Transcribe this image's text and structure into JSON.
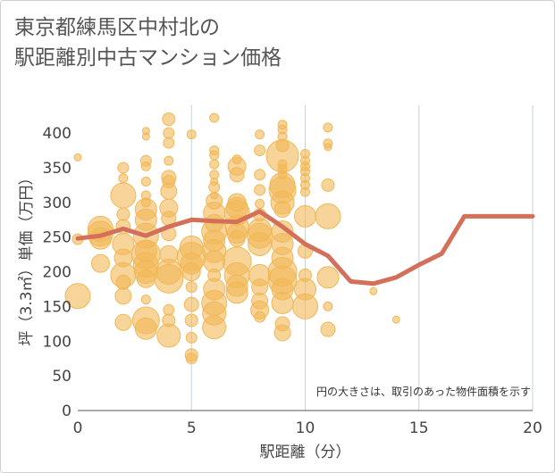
{
  "title_line1": "東京都練馬区中村北の",
  "title_line2": "駅距離別中古マンション価格",
  "chart_data": {
    "type": "scatter",
    "xlabel": "駅距離（分）",
    "ylabel": "坪（3.3㎡）単価（万円）",
    "annotation": "円の大きさは、取引のあった物件面積を示す",
    "xlim": [
      0,
      20
    ],
    "ylim": [
      0,
      440
    ],
    "x_ticks": [
      0,
      5,
      10,
      15,
      20
    ],
    "y_ticks": [
      0,
      50,
      100,
      150,
      200,
      250,
      300,
      350,
      400
    ],
    "grid": "vertical",
    "bubble_color": "#f2b857",
    "line_color": "#d4705a",
    "points": [
      {
        "x": 0,
        "y": 365,
        "r": 4
      },
      {
        "x": 0,
        "y": 165,
        "r": 14
      },
      {
        "x": 0,
        "y": 247,
        "r": 6
      },
      {
        "x": 1,
        "y": 262,
        "r": 14
      },
      {
        "x": 1,
        "y": 255,
        "r": 14
      },
      {
        "x": 1,
        "y": 248,
        "r": 12
      },
      {
        "x": 1,
        "y": 212,
        "r": 10
      },
      {
        "x": 2,
        "y": 350,
        "r": 6
      },
      {
        "x": 2,
        "y": 335,
        "r": 5
      },
      {
        "x": 2,
        "y": 310,
        "r": 14
      },
      {
        "x": 2,
        "y": 283,
        "r": 7
      },
      {
        "x": 2,
        "y": 265,
        "r": 8
      },
      {
        "x": 2,
        "y": 240,
        "r": 12
      },
      {
        "x": 2,
        "y": 220,
        "r": 10
      },
      {
        "x": 2,
        "y": 195,
        "r": 14
      },
      {
        "x": 2,
        "y": 185,
        "r": 8
      },
      {
        "x": 2,
        "y": 165,
        "r": 9
      },
      {
        "x": 2,
        "y": 127,
        "r": 9
      },
      {
        "x": 3,
        "y": 403,
        "r": 4
      },
      {
        "x": 3,
        "y": 395,
        "r": 4
      },
      {
        "x": 3,
        "y": 360,
        "r": 6
      },
      {
        "x": 3,
        "y": 352,
        "r": 5
      },
      {
        "x": 3,
        "y": 330,
        "r": 5
      },
      {
        "x": 3,
        "y": 310,
        "r": 5
      },
      {
        "x": 3,
        "y": 300,
        "r": 5
      },
      {
        "x": 3,
        "y": 290,
        "r": 12
      },
      {
        "x": 3,
        "y": 275,
        "r": 12
      },
      {
        "x": 3,
        "y": 252,
        "r": 14
      },
      {
        "x": 3,
        "y": 230,
        "r": 12
      },
      {
        "x": 3,
        "y": 225,
        "r": 16
      },
      {
        "x": 3,
        "y": 210,
        "r": 14
      },
      {
        "x": 3,
        "y": 200,
        "r": 13
      },
      {
        "x": 3,
        "y": 190,
        "r": 10
      },
      {
        "x": 3,
        "y": 160,
        "r": 5
      },
      {
        "x": 3,
        "y": 130,
        "r": 15
      },
      {
        "x": 3,
        "y": 118,
        "r": 12
      },
      {
        "x": 4,
        "y": 420,
        "r": 7
      },
      {
        "x": 4,
        "y": 400,
        "r": 6
      },
      {
        "x": 4,
        "y": 386,
        "r": 6
      },
      {
        "x": 4,
        "y": 360,
        "r": 5
      },
      {
        "x": 4,
        "y": 336,
        "r": 8
      },
      {
        "x": 4,
        "y": 330,
        "r": 7
      },
      {
        "x": 4,
        "y": 316,
        "r": 9
      },
      {
        "x": 4,
        "y": 292,
        "r": 10
      },
      {
        "x": 4,
        "y": 277,
        "r": 8
      },
      {
        "x": 4,
        "y": 255,
        "r": 8
      },
      {
        "x": 4,
        "y": 225,
        "r": 10
      },
      {
        "x": 4,
        "y": 200,
        "r": 14
      },
      {
        "x": 4,
        "y": 190,
        "r": 16
      },
      {
        "x": 4,
        "y": 145,
        "r": 6
      },
      {
        "x": 4,
        "y": 130,
        "r": 7
      },
      {
        "x": 4,
        "y": 108,
        "r": 13
      },
      {
        "x": 5,
        "y": 398,
        "r": 5
      },
      {
        "x": 5,
        "y": 235,
        "r": 13
      },
      {
        "x": 5,
        "y": 222,
        "r": 16
      },
      {
        "x": 5,
        "y": 212,
        "r": 12
      },
      {
        "x": 5,
        "y": 200,
        "r": 10
      },
      {
        "x": 5,
        "y": 178,
        "r": 6
      },
      {
        "x": 5,
        "y": 153,
        "r": 8
      },
      {
        "x": 5,
        "y": 130,
        "r": 7
      },
      {
        "x": 5,
        "y": 105,
        "r": 6
      },
      {
        "x": 5,
        "y": 80,
        "r": 7
      },
      {
        "x": 5,
        "y": 75,
        "r": 6
      },
      {
        "x": 6,
        "y": 422,
        "r": 5
      },
      {
        "x": 6,
        "y": 375,
        "r": 5
      },
      {
        "x": 6,
        "y": 368,
        "r": 5
      },
      {
        "x": 6,
        "y": 355,
        "r": 5
      },
      {
        "x": 6,
        "y": 340,
        "r": 5
      },
      {
        "x": 6,
        "y": 322,
        "r": 6
      },
      {
        "x": 6,
        "y": 302,
        "r": 9
      },
      {
        "x": 6,
        "y": 285,
        "r": 12
      },
      {
        "x": 6,
        "y": 270,
        "r": 10
      },
      {
        "x": 6,
        "y": 258,
        "r": 14
      },
      {
        "x": 6,
        "y": 245,
        "r": 12
      },
      {
        "x": 6,
        "y": 230,
        "r": 13
      },
      {
        "x": 6,
        "y": 215,
        "r": 12
      },
      {
        "x": 6,
        "y": 195,
        "r": 7
      },
      {
        "x": 6,
        "y": 175,
        "r": 12
      },
      {
        "x": 6,
        "y": 155,
        "r": 14
      },
      {
        "x": 6,
        "y": 140,
        "r": 13
      },
      {
        "x": 6,
        "y": 120,
        "r": 13
      },
      {
        "x": 6,
        "y": 310,
        "r": 4
      },
      {
        "x": 6,
        "y": 330,
        "r": 4
      },
      {
        "x": 7,
        "y": 362,
        "r": 5
      },
      {
        "x": 7,
        "y": 352,
        "r": 10
      },
      {
        "x": 7,
        "y": 340,
        "r": 8
      },
      {
        "x": 7,
        "y": 300,
        "r": 10
      },
      {
        "x": 7,
        "y": 292,
        "r": 12
      },
      {
        "x": 7,
        "y": 285,
        "r": 14
      },
      {
        "x": 7,
        "y": 265,
        "r": 13
      },
      {
        "x": 7,
        "y": 255,
        "r": 11
      },
      {
        "x": 7,
        "y": 248,
        "r": 9
      },
      {
        "x": 7,
        "y": 215,
        "r": 16
      },
      {
        "x": 7,
        "y": 195,
        "r": 14
      },
      {
        "x": 7,
        "y": 180,
        "r": 12
      },
      {
        "x": 7,
        "y": 170,
        "r": 12
      },
      {
        "x": 8,
        "y": 398,
        "r": 5
      },
      {
        "x": 8,
        "y": 375,
        "r": 6
      },
      {
        "x": 8,
        "y": 340,
        "r": 6
      },
      {
        "x": 8,
        "y": 318,
        "r": 6
      },
      {
        "x": 8,
        "y": 298,
        "r": 5
      },
      {
        "x": 8,
        "y": 282,
        "r": 7
      },
      {
        "x": 8,
        "y": 260,
        "r": 13
      },
      {
        "x": 8,
        "y": 252,
        "r": 14
      },
      {
        "x": 8,
        "y": 240,
        "r": 13
      },
      {
        "x": 8,
        "y": 195,
        "r": 12
      },
      {
        "x": 8,
        "y": 178,
        "r": 9
      },
      {
        "x": 8,
        "y": 158,
        "r": 9
      },
      {
        "x": 8,
        "y": 145,
        "r": 10
      },
      {
        "x": 8,
        "y": 135,
        "r": 6
      },
      {
        "x": 9,
        "y": 412,
        "r": 5
      },
      {
        "x": 9,
        "y": 405,
        "r": 5
      },
      {
        "x": 9,
        "y": 395,
        "r": 5
      },
      {
        "x": 9,
        "y": 382,
        "r": 7
      },
      {
        "x": 9,
        "y": 367,
        "r": 18
      },
      {
        "x": 9,
        "y": 355,
        "r": 5
      },
      {
        "x": 9,
        "y": 348,
        "r": 5
      },
      {
        "x": 9,
        "y": 340,
        "r": 5
      },
      {
        "x": 9,
        "y": 325,
        "r": 14
      },
      {
        "x": 9,
        "y": 318,
        "r": 15
      },
      {
        "x": 9,
        "y": 300,
        "r": 13
      },
      {
        "x": 9,
        "y": 290,
        "r": 9
      },
      {
        "x": 9,
        "y": 258,
        "r": 12
      },
      {
        "x": 9,
        "y": 240,
        "r": 12
      },
      {
        "x": 9,
        "y": 220,
        "r": 12
      },
      {
        "x": 9,
        "y": 200,
        "r": 16
      },
      {
        "x": 9,
        "y": 188,
        "r": 16
      },
      {
        "x": 9,
        "y": 175,
        "r": 12
      },
      {
        "x": 9,
        "y": 155,
        "r": 12
      },
      {
        "x": 9,
        "y": 125,
        "r": 8
      },
      {
        "x": 9,
        "y": 112,
        "r": 9
      },
      {
        "x": 10,
        "y": 370,
        "r": 5
      },
      {
        "x": 10,
        "y": 360,
        "r": 5
      },
      {
        "x": 10,
        "y": 352,
        "r": 5
      },
      {
        "x": 10,
        "y": 345,
        "r": 5
      },
      {
        "x": 10,
        "y": 335,
        "r": 5
      },
      {
        "x": 10,
        "y": 325,
        "r": 5
      },
      {
        "x": 10,
        "y": 315,
        "r": 5
      },
      {
        "x": 10,
        "y": 280,
        "r": 12
      },
      {
        "x": 10,
        "y": 230,
        "r": 8
      },
      {
        "x": 10,
        "y": 195,
        "r": 7
      },
      {
        "x": 10,
        "y": 175,
        "r": 12
      },
      {
        "x": 10,
        "y": 150,
        "r": 14
      },
      {
        "x": 11,
        "y": 408,
        "r": 5
      },
      {
        "x": 11,
        "y": 385,
        "r": 5
      },
      {
        "x": 11,
        "y": 380,
        "r": 4
      },
      {
        "x": 11,
        "y": 325,
        "r": 7
      },
      {
        "x": 11,
        "y": 280,
        "r": 14
      },
      {
        "x": 11,
        "y": 192,
        "r": 12
      },
      {
        "x": 11,
        "y": 150,
        "r": 5
      },
      {
        "x": 11,
        "y": 117,
        "r": 8
      },
      {
        "x": 13,
        "y": 172,
        "r": 4
      },
      {
        "x": 14,
        "y": 131,
        "r": 4
      }
    ],
    "trend": {
      "x": [
        0,
        1,
        2,
        3,
        4,
        5,
        6,
        7,
        8,
        9,
        10,
        11,
        12,
        13,
        14,
        15,
        16,
        17,
        18,
        19,
        20
      ],
      "y": [
        248,
        252,
        262,
        252,
        265,
        275,
        273,
        272,
        287,
        265,
        240,
        223,
        186,
        183,
        192,
        210,
        226,
        280,
        280,
        280,
        280
      ]
    }
  }
}
